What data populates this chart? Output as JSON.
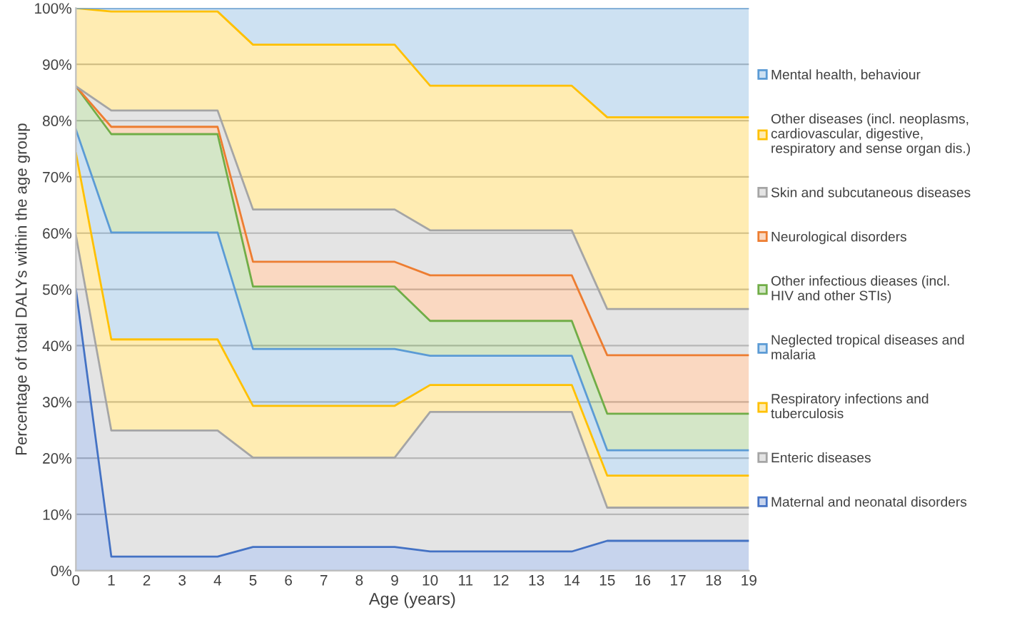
{
  "chart_data": {
    "type": "area",
    "stacked": true,
    "xlabel": "Age (years)",
    "ylabel": "Percentage of total DALYs within the age group",
    "x": [
      0,
      1,
      4,
      5,
      9,
      10,
      14,
      15,
      19
    ],
    "series": [
      {
        "name": "Maternal and neonatal disorders",
        "color": "#4472c4",
        "values": [
          50,
          2.5,
          2.5,
          4.2,
          4.2,
          3.4,
          3.4,
          5.3,
          5.3
        ]
      },
      {
        "name": "Enteric diseases",
        "color": "#a5a5a5",
        "values": [
          9.6,
          22.4,
          22.4,
          15.9,
          15.9,
          24.8,
          24.8,
          5.9,
          5.9
        ]
      },
      {
        "name": "Respiratory infections and\ntuberculosis",
        "color": "#ffc000",
        "values": [
          14.6,
          16.2,
          16.2,
          9.2,
          9.2,
          4.8,
          4.8,
          5.7,
          5.7
        ]
      },
      {
        "name": "Neglected tropical diseases and\nmalaria",
        "color": "#5b9bd5",
        "values": [
          4.2,
          19.0,
          19.0,
          10.1,
          10.1,
          5.2,
          5.2,
          4.5,
          4.5
        ]
      },
      {
        "name": "Other infectious dieases (incl.\nHIV and other STIs)",
        "color": "#70ad47",
        "values": [
          7.7,
          17.5,
          17.5,
          11.1,
          11.1,
          6.2,
          6.2,
          6.5,
          6.5
        ]
      },
      {
        "name": "Neurological disorders",
        "color": "#ed7d31",
        "values": [
          0,
          1.3,
          1.3,
          4.4,
          4.4,
          8.1,
          8.1,
          10.4,
          10.4
        ]
      },
      {
        "name": "Skin and subcutaneous diseases",
        "color": "#a5a5a5",
        "values": [
          0,
          2.9,
          2.9,
          9.3,
          9.3,
          8.0,
          8.0,
          8.2,
          8.2
        ]
      },
      {
        "name": "Other diseases (incl. neoplasms,\ncardiovascular, digestive,\nrespiratory and sense organ dis.)",
        "color": "#ffc000",
        "values": [
          13.9,
          17.6,
          17.6,
          29.3,
          29.3,
          25.7,
          25.7,
          34.1,
          34.1
        ]
      },
      {
        "name": "Mental health, behaviour",
        "color": "#5b9bd5",
        "values": [
          0,
          0.6,
          0.6,
          6.5,
          6.5,
          13.8,
          13.8,
          19.4,
          19.4
        ]
      }
    ],
    "xlim": [
      0,
      19
    ],
    "xticks": [
      0,
      1,
      2,
      3,
      4,
      5,
      6,
      7,
      8,
      9,
      10,
      11,
      12,
      13,
      14,
      15,
      16,
      17,
      18,
      19
    ],
    "ylim": [
      0,
      100
    ],
    "yticks": [
      {
        "value": 0,
        "label": "0%"
      },
      {
        "value": 10,
        "label": "10%"
      },
      {
        "value": 20,
        "label": "20%"
      },
      {
        "value": 30,
        "label": "30%"
      },
      {
        "value": 40,
        "label": "40%"
      },
      {
        "value": 50,
        "label": "50%"
      },
      {
        "value": 60,
        "label": "60%"
      },
      {
        "value": 70,
        "label": "70%"
      },
      {
        "value": 80,
        "label": "80%"
      },
      {
        "value": 90,
        "label": "90%"
      },
      {
        "value": 100,
        "label": "100%"
      }
    ],
    "grid": "y",
    "legend": "right"
  }
}
